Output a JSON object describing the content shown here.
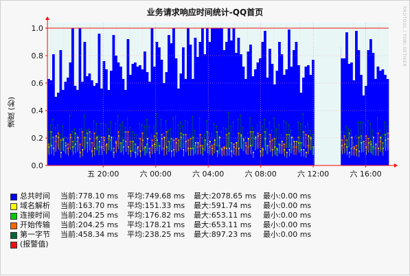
{
  "chart_data": {
    "type": "area",
    "title": "业务请求响应时间统计-QQ首页",
    "ylabel": "速度 (秒)",
    "watermark": "RRDTOOL / TOBI OETIKER",
    "ylim": [
      0,
      1.0
    ],
    "y_ticks": [
      "0.0",
      "0.2",
      "0.4",
      "0.6",
      "0.8",
      "1.0"
    ],
    "y_tick_values": [
      0.0,
      0.2,
      0.4,
      0.6,
      0.8,
      1.0
    ],
    "x_ticks": [
      "五 20:00",
      "六 00:00",
      "六 04:00",
      "六 08:00",
      "六 12:00",
      "六 16:00"
    ],
    "x_tick_hours": [
      20,
      24,
      28,
      32,
      36,
      40
    ],
    "x_range_hours": [
      15.75,
      41.75
    ],
    "alarm_value": 1.0,
    "gap_hours": [
      [
        36.55,
        38.1
      ]
    ],
    "grid": true,
    "series": [
      {
        "name": "总共时间",
        "color": "#0000ff",
        "current": "当前:778.10 ms",
        "average": "平均:749.68 ms",
        "maximum": "最大:2078.65 ms",
        "minimum": "最小:0.00 ms",
        "values": [
          0.63,
          0.62,
          0.81,
          0.5,
          0.53,
          0.84,
          0.55,
          0.61,
          0.64,
          0.75,
          1.0,
          0.58,
          0.55,
          1.0,
          0.61,
          0.9,
          0.65,
          0.67,
          0.62,
          0.58,
          0.6,
          0.96,
          0.56,
          0.76,
          0.7,
          0.55,
          0.69,
          0.95,
          0.8,
          0.75,
          0.72,
          0.63,
          0.55,
          0.92,
          0.66,
          0.74,
          0.75,
          0.72,
          0.73,
          0.7,
          0.83,
          0.68,
          0.61,
          1.0,
          0.72,
          0.9,
          0.86,
          0.77,
          0.6,
          0.68,
          0.95,
          0.89,
          1.0,
          0.78,
          0.56,
          0.67,
          0.86,
          0.63,
          1.0,
          0.88,
          0.63,
          0.93,
          0.79,
          0.9,
          1.0,
          0.81,
          1.0,
          0.9,
          1.0,
          1.0,
          1.0,
          1.0,
          1.0,
          0.84,
          0.9,
          1.0,
          0.91,
          1.0,
          0.82,
          0.93,
          0.81,
          0.72,
          0.63,
          0.83,
          0.88,
          0.65,
          0.7,
          0.75,
          0.78,
          0.9,
          0.98,
          0.64,
          0.85,
          0.74,
          0.59,
          0.69,
          0.9,
          0.81,
          0.66,
          0.7,
          0.99,
          0.72,
          0.84,
          0.9,
          0.73,
          0.53,
          0.64,
          0.72,
          0.73,
          0.66,
          0.77,
          0.0,
          0.0,
          0.0,
          0.0,
          0.0,
          0.0,
          0.71,
          0.55,
          1.0,
          0.76,
          0.86,
          0.78,
          0.78,
          0.97,
          0.74,
          0.75,
          0.62,
          0.98,
          0.84,
          0.66,
          0.51,
          0.58,
          0.84,
          0.92,
          0.82,
          0.63,
          0.72,
          0.69,
          0.7,
          0.66,
          0.63
        ]
      },
      {
        "name": "域名解析",
        "color": "#ffff00",
        "current": "当前:163.70 ms",
        "average": "平均:151.33 ms",
        "maximum": "最大:591.74 ms",
        "minimum": "最小:0.00 ms",
        "values": [
          0.14,
          0.15,
          0.13,
          0.22,
          0.21,
          0.1,
          0.19,
          0.15,
          0.13,
          0.21,
          0.14,
          0.16,
          0.21,
          0.1,
          0.12,
          0.21,
          0.17,
          0.2,
          0.11,
          0.13,
          0.21,
          0.18,
          0.14,
          0.19,
          0.16,
          0.22,
          0.21,
          0.1,
          0.17,
          0.22,
          0.17,
          0.14,
          0.18,
          0.14,
          0.11,
          0.18,
          0.1,
          0.14,
          0.11,
          0.19,
          0.14,
          0.2,
          0.1,
          0.15,
          0.16,
          0.19,
          0.15,
          0.2,
          0.21,
          0.14,
          0.18,
          0.11,
          0.12,
          0.17,
          0.19,
          0.21,
          0.12,
          0.18,
          0.13,
          0.13,
          0.13,
          0.17,
          0.17,
          0.15,
          0.13,
          0.19,
          0.16,
          0.18,
          0.13,
          0.19,
          0.11,
          0.21,
          0.12,
          0.13,
          0.13,
          0.13,
          0.11,
          0.14,
          0.17,
          0.13,
          0.22,
          0.19,
          0.15,
          0.2,
          0.15,
          0.1,
          0.21,
          0.22,
          0.11,
          0.12,
          0.2,
          0.15,
          0.18,
          0.12,
          0.14,
          0.12,
          0.16,
          0.18,
          0.12,
          0.1,
          0.12,
          0.21,
          0.18,
          0.18,
          0.17,
          0.12,
          0.12,
          0.1,
          0.22,
          0.2,
          0.14,
          0.0,
          0.0,
          0.0,
          0.0,
          0.0,
          0.0,
          0.15,
          0.17,
          0.14,
          0.16,
          0.15,
          0.15,
          0.16,
          0.14,
          0.1,
          0.21,
          0.13,
          0.12,
          0.11,
          0.17,
          0.18,
          0.14,
          0.17,
          0.16,
          0.21,
          0.16,
          0.13,
          0.21,
          0.13,
          0.19,
          0.2
        ]
      },
      {
        "name": "连接时间",
        "color": "#00cc00",
        "current": "当前:204.25 ms",
        "average": "平均:176.82 ms",
        "maximum": "最大:653.11 ms",
        "minimum": "最小:0.00 ms",
        "values": [
          0.16,
          0.25,
          0.21,
          0.18,
          0.24,
          0.19,
          0.2,
          0.17,
          0.16,
          0.23,
          0.18,
          0.24,
          0.18,
          0.16,
          0.25,
          0.21,
          0.24,
          0.25,
          0.17,
          0.24,
          0.2,
          0.14,
          0.21,
          0.21,
          0.15,
          0.2,
          0.19,
          0.13,
          0.18,
          0.25,
          0.17,
          0.19,
          0.25,
          0.25,
          0.18,
          0.18,
          0.16,
          0.13,
          0.2,
          0.24,
          0.13,
          0.16,
          0.13,
          0.19,
          0.22,
          0.24,
          0.15,
          0.23,
          0.13,
          0.25,
          0.18,
          0.2,
          0.19,
          0.2,
          0.19,
          0.24,
          0.23,
          0.23,
          0.19,
          0.2,
          0.21,
          0.15,
          0.14,
          0.23,
          0.15,
          0.19,
          0.25,
          0.14,
          0.15,
          0.16,
          0.25,
          0.15,
          0.13,
          0.14,
          0.23,
          0.24,
          0.17,
          0.16,
          0.13,
          0.24,
          0.23,
          0.2,
          0.17,
          0.14,
          0.25,
          0.25,
          0.2,
          0.24,
          0.23,
          0.13,
          0.25,
          0.15,
          0.23,
          0.19,
          0.2,
          0.13,
          0.16,
          0.15,
          0.16,
          0.23,
          0.23,
          0.16,
          0.14,
          0.14,
          0.21,
          0.17,
          0.25,
          0.23,
          0.15,
          0.21,
          0.14,
          0.0,
          0.0,
          0.0,
          0.0,
          0.0,
          0.0,
          0.25,
          0.19,
          0.24,
          0.15,
          0.2,
          0.19,
          0.22,
          0.19,
          0.24,
          0.13,
          0.14,
          0.15,
          0.21,
          0.22,
          0.18,
          0.22,
          0.2,
          0.18,
          0.14,
          0.13,
          0.24,
          0.18,
          0.17,
          0.23,
          0.24
        ]
      },
      {
        "name": "开始传输",
        "color": "#ff6600",
        "current": "当前:204.25 ms",
        "average": "平均:178.21 ms",
        "maximum": "最大:653.11 ms",
        "minimum": "最小:0.00 ms",
        "values": [
          0.16,
          0.25,
          0.21,
          0.18,
          0.24,
          0.19,
          0.2,
          0.17,
          0.16,
          0.23,
          0.18,
          0.24,
          0.18,
          0.16,
          0.25,
          0.21,
          0.24,
          0.25,
          0.17,
          0.24,
          0.2,
          0.14,
          0.21,
          0.21,
          0.15,
          0.2,
          0.19,
          0.13,
          0.18,
          0.25,
          0.17,
          0.19,
          0.25,
          0.25,
          0.18,
          0.18,
          0.16,
          0.13,
          0.2,
          0.24,
          0.13,
          0.16,
          0.13,
          0.19,
          0.22,
          0.24,
          0.15,
          0.23,
          0.13,
          0.25,
          0.18,
          0.2,
          0.19,
          0.2,
          0.19,
          0.24,
          0.23,
          0.23,
          0.19,
          0.2,
          0.21,
          0.15,
          0.14,
          0.23,
          0.15,
          0.19,
          0.25,
          0.14,
          0.15,
          0.16,
          0.25,
          0.15,
          0.13,
          0.14,
          0.23,
          0.24,
          0.17,
          0.16,
          0.13,
          0.24,
          0.23,
          0.2,
          0.17,
          0.14,
          0.25,
          0.25,
          0.2,
          0.24,
          0.23,
          0.13,
          0.25,
          0.15,
          0.23,
          0.19,
          0.2,
          0.13,
          0.16,
          0.15,
          0.16,
          0.23,
          0.23,
          0.16,
          0.14,
          0.14,
          0.21,
          0.17,
          0.25,
          0.23,
          0.15,
          0.21,
          0.14,
          0.0,
          0.0,
          0.0,
          0.0,
          0.0,
          0.0,
          0.25,
          0.19,
          0.24,
          0.15,
          0.2,
          0.19,
          0.22,
          0.19,
          0.24,
          0.13,
          0.14,
          0.15,
          0.21,
          0.22,
          0.18,
          0.22,
          0.2,
          0.18,
          0.14,
          0.13,
          0.24,
          0.18,
          0.17,
          0.23,
          0.24
        ]
      },
      {
        "name": "第一字节",
        "color": "#006633",
        "current": "当前:458.34 ms",
        "average": "平均:238.25 ms",
        "maximum": "最大:897.23 ms",
        "minimum": "最小:0.00 ms",
        "values": [
          0.25,
          0.3,
          0.34,
          0.28,
          0.3,
          0.23,
          0.29,
          0.21,
          0.2,
          0.37,
          0.25,
          0.27,
          0.23,
          0.27,
          0.27,
          0.37,
          0.26,
          0.27,
          0.24,
          0.33,
          0.31,
          0.22,
          0.31,
          0.31,
          0.3,
          0.27,
          0.32,
          0.21,
          0.31,
          0.37,
          0.3,
          0.32,
          0.28,
          0.35,
          0.28,
          0.25,
          0.23,
          0.23,
          0.31,
          0.3,
          0.29,
          0.34,
          0.29,
          0.23,
          0.29,
          0.38,
          0.17,
          0.34,
          0.24,
          0.33,
          0.26,
          0.27,
          0.35,
          0.36,
          0.3,
          0.32,
          0.29,
          0.33,
          0.32,
          0.23,
          0.36,
          0.26,
          0.2,
          0.35,
          0.21,
          0.23,
          0.33,
          0.24,
          0.24,
          0.31,
          0.29,
          0.22,
          0.25,
          0.28,
          0.27,
          0.39,
          0.29,
          0.32,
          0.2,
          0.34,
          0.37,
          0.28,
          0.21,
          0.24,
          0.35,
          0.28,
          0.22,
          0.3,
          0.32,
          0.29,
          0.34,
          0.27,
          0.32,
          0.26,
          0.35,
          0.27,
          0.3,
          0.23,
          0.33,
          0.32,
          0.3,
          0.26,
          0.21,
          0.18,
          0.32,
          0.31,
          0.38,
          0.29,
          0.31,
          0.26,
          0.23,
          0.0,
          0.0,
          0.0,
          0.0,
          0.0,
          0.0,
          0.38,
          0.28,
          0.26,
          0.26,
          0.25,
          0.25,
          0.25,
          0.29,
          0.27,
          0.26,
          0.17,
          0.22,
          0.32,
          0.32,
          0.32,
          0.3,
          0.33,
          0.31,
          0.26,
          0.15,
          0.35,
          0.26,
          0.23,
          0.32,
          0.29
        ]
      }
    ],
    "alarm_legend": {
      "name": "(报警值)",
      "color": "#ee1111"
    }
  }
}
